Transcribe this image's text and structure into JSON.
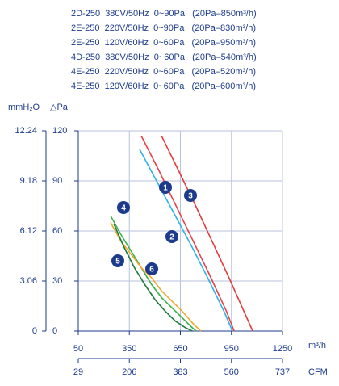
{
  "chart_data": {
    "type": "line",
    "header_lines": [
      "2D-250  380V/50Hz  0~90Pa   (20Pa–850m³/h)",
      "2E-250  220V/50Hz  0~90Pa   (20Pa–830m³/h)",
      "2E-250  120V/60Hz  0~60Pa   (20Pa–950m³/h)",
      "4D-250  380V/50Hz  0~60Pa   (20Pa–540m³/h)",
      "4E-250  220V/50Hz  0~60Pa   (20Pa–520m³/h)",
      "4E-250  120V/60Hz  0~60Pa   (20Pa–600m³/h)"
    ],
    "y_label": "△Pa",
    "y2_label": "mmH₂O",
    "x_label": "m³/h",
    "x2_label": "CFM",
    "xlim": [
      50,
      1250
    ],
    "xticks": [
      50,
      350,
      650,
      950,
      1250
    ],
    "x2lim": [
      29,
      737
    ],
    "x2ticks": [
      29,
      206,
      383,
      560,
      737
    ],
    "ylim": [
      0,
      120
    ],
    "yticks": [
      0,
      30,
      60,
      90,
      120
    ],
    "y2lim": [
      0,
      12.24
    ],
    "y2ticks": [
      0,
      3.06,
      6.12,
      9.18,
      12.24
    ],
    "grid": true,
    "series": [
      {
        "name": "1",
        "color": "#e8414a",
        "x": [
          420,
          520,
          620,
          720,
          820,
          920,
          966
        ],
        "values": [
          117,
          97,
          76,
          55,
          34,
          12,
          0
        ]
      },
      {
        "name": "2",
        "color": "#2bb3e6",
        "x": [
          410,
          510,
          610,
          710,
          810,
          910,
          956
        ],
        "values": [
          109,
          90,
          71,
          52,
          32,
          11,
          0
        ]
      },
      {
        "name": "3",
        "color": "#e43b3b",
        "x": [
          539,
          640,
          740,
          840,
          940,
          1040,
          1075
        ],
        "values": [
          117,
          96,
          75,
          53,
          31,
          8,
          0
        ]
      },
      {
        "name": "4",
        "color": "#3cb04a",
        "x": [
          240,
          300,
          360,
          420,
          480,
          540,
          600,
          660,
          720,
          743
        ],
        "values": [
          69,
          58,
          48,
          38,
          28,
          20,
          14,
          8,
          2,
          0
        ]
      },
      {
        "name": "5",
        "color": "#f0a830",
        "x": [
          240,
          300,
          360,
          420,
          480,
          540,
          600,
          660,
          720,
          770
        ],
        "values": [
          65,
          54,
          46,
          38,
          32,
          24,
          18,
          12,
          5,
          0
        ]
      },
      {
        "name": "6",
        "color": "#1f7a3c",
        "x": [
          260,
          320,
          380,
          440,
          500,
          560,
          620,
          680,
          720
        ],
        "values": [
          64,
          50,
          38,
          28,
          19,
          12,
          6,
          2,
          0
        ]
      }
    ]
  }
}
